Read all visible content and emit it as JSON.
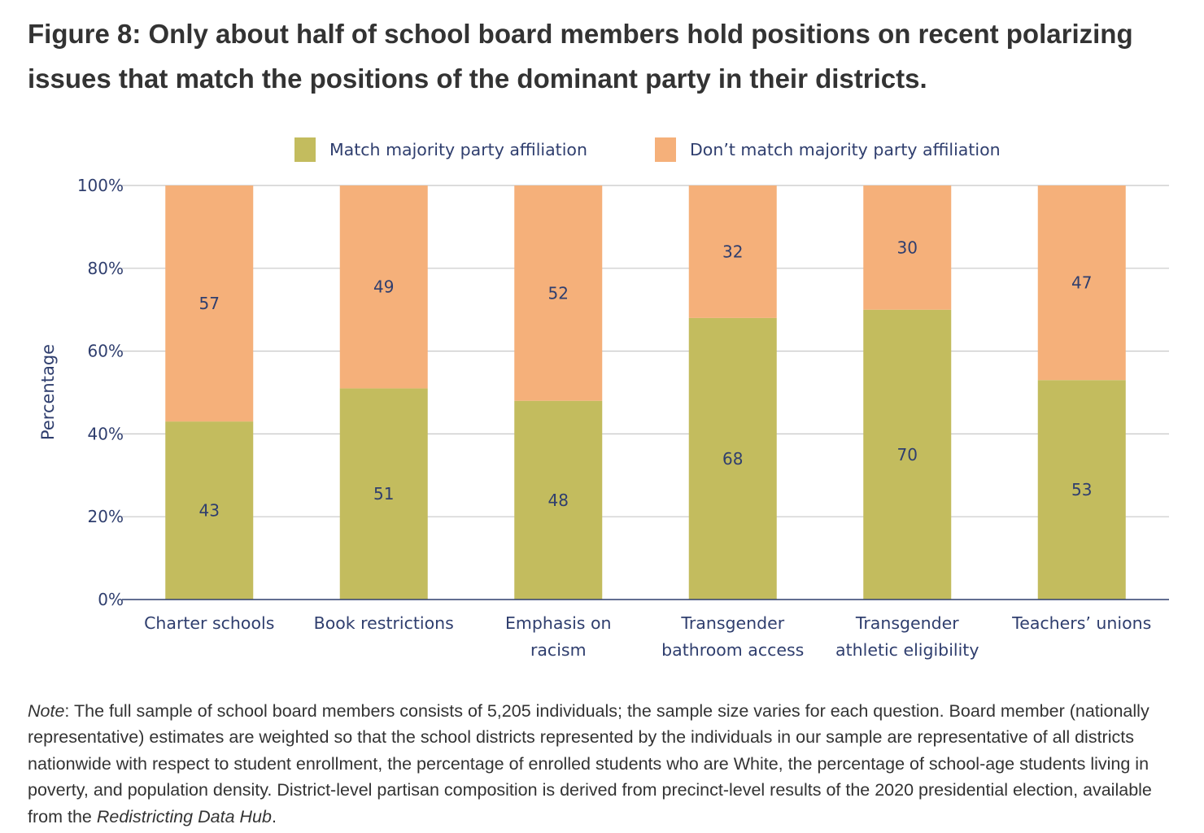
{
  "title": "Figure 8: Only about half of school board members hold positions on recent polarizing issues that match the positions of the dominant party in their districts.",
  "chart_data": {
    "type": "bar",
    "stacked": true,
    "title": "",
    "xlabel": "",
    "ylabel": "Percentage",
    "ylim": [
      0,
      100
    ],
    "yticks": [
      0,
      20,
      40,
      60,
      80,
      100
    ],
    "ytick_labels": [
      "0%",
      "20%",
      "40%",
      "60%",
      "80%",
      "100%"
    ],
    "grid": true,
    "legend_position": "top-center",
    "categories": [
      [
        "Charter schools"
      ],
      [
        "Book restrictions"
      ],
      [
        "Emphasis on",
        "racism"
      ],
      [
        "Transgender",
        "bathroom access"
      ],
      [
        "Transgender",
        "athletic eligibility"
      ],
      [
        "Teachers’ unions"
      ]
    ],
    "series": [
      {
        "name": "Match majority party affiliation",
        "color": "#c3bc5e",
        "values": [
          43,
          51,
          48,
          68,
          70,
          53
        ]
      },
      {
        "name": "Don’t match majority party affiliation",
        "color": "#f5b07a",
        "values": [
          57,
          49,
          52,
          32,
          30,
          47
        ]
      }
    ]
  },
  "note": {
    "label": "Note",
    "text_before": ": The full sample of school board members consists of 5,205 individuals; the sample size varies for each question. Board member (nationally representative) estimates are weighted so that the school districts represented by the individuals in our sample are representative of all districts nationwide with respect to student enrollment, the percentage of enrolled students who are White, the percentage of school-age students living in poverty, and population density. District-level partisan composition is derived from precinct-level results of the 2020 presidential election, available from the ",
    "source_name": "Redistricting Data Hub",
    "text_after": "."
  }
}
